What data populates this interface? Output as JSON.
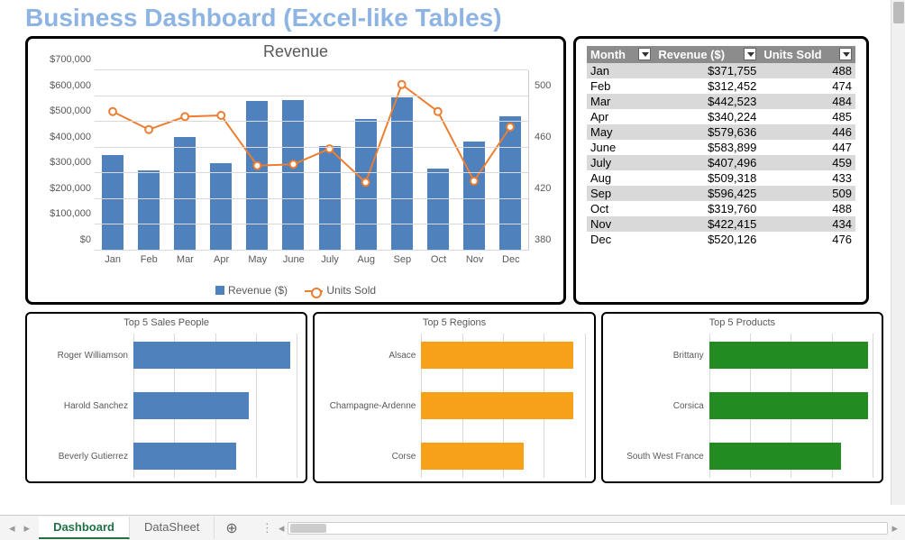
{
  "title": "Business Dashboard (Excel-like Tables)",
  "title_color": "#8db4e2",
  "title_fontsize": 28,
  "revenue_chart": {
    "type": "bar+line",
    "title": "Revenue",
    "title_fontsize": 18,
    "categories": [
      "Jan",
      "Feb",
      "Mar",
      "Apr",
      "May",
      "June",
      "July",
      "Aug",
      "Sep",
      "Oct",
      "Nov",
      "Dec"
    ],
    "bar_series": {
      "name": "Revenue ($)",
      "color": "#4f81bd",
      "values": [
        371755,
        312452,
        442523,
        340224,
        579636,
        583899,
        407496,
        509318,
        596425,
        319760,
        422415,
        520126
      ]
    },
    "line_series": {
      "name": "Units Sold",
      "color": "#ed7d31",
      "marker_fill": "#ffffff",
      "values": [
        488,
        474,
        484,
        485,
        446,
        447,
        459,
        433,
        509,
        488,
        434,
        476
      ]
    },
    "y_left": {
      "min": 0,
      "max": 700000,
      "step": 100000,
      "format_prefix": "$",
      "ticks": [
        "$0",
        "$100,000",
        "$200,000",
        "$300,000",
        "$400,000",
        "$500,000",
        "$600,000",
        "$700,000"
      ]
    },
    "y_right": {
      "min": 380,
      "max": 520,
      "step": 40,
      "ticks": [
        "380",
        "420",
        "460",
        "500"
      ]
    },
    "grid_color": "#d9d9d9",
    "background_color": "#ffffff"
  },
  "data_table": {
    "columns": [
      "Month",
      "Revenue ($)",
      "Units Sold"
    ],
    "header_bg": "#8c8c8c",
    "header_fg": "#ffffff",
    "row_alt_bg": "#d9d9d9",
    "rows": [
      [
        "Jan",
        "$371,755",
        "488"
      ],
      [
        "Feb",
        "$312,452",
        "474"
      ],
      [
        "Mar",
        "$442,523",
        "484"
      ],
      [
        "Apr",
        "$340,224",
        "485"
      ],
      [
        "May",
        "$579,636",
        "446"
      ],
      [
        "June",
        "$583,899",
        "447"
      ],
      [
        "July",
        "$407,496",
        "459"
      ],
      [
        "Aug",
        "$509,318",
        "433"
      ],
      [
        "Sep",
        "$596,425",
        "509"
      ],
      [
        "Oct",
        "$319,760",
        "488"
      ],
      [
        "Nov",
        "$422,415",
        "434"
      ],
      [
        "Dec",
        "$520,126",
        "476"
      ]
    ]
  },
  "mini_charts": [
    {
      "title": "Top 5 Sales People",
      "color": "#4f81bd",
      "max": 100,
      "items": [
        {
          "label": "Roger Williamson",
          "value": 95
        },
        {
          "label": "Harold Sanchez",
          "value": 70
        },
        {
          "label": "Beverly Gutierrez",
          "value": 62
        }
      ]
    },
    {
      "title": "Top 5 Regions",
      "color": "#f7a11b",
      "max": 100,
      "items": [
        {
          "label": "Alsace",
          "value": 92
        },
        {
          "label": "Champagne-Ardenne",
          "value": 92
        },
        {
          "label": "Corse",
          "value": 62
        }
      ]
    },
    {
      "title": "Top 5 Products",
      "color": "#228b22",
      "max": 100,
      "items": [
        {
          "label": "Brittany",
          "value": 96
        },
        {
          "label": "Corsica",
          "value": 96
        },
        {
          "label": "South West France",
          "value": 80
        }
      ]
    }
  ],
  "tabs": {
    "items": [
      "Dashboard",
      "DataSheet"
    ],
    "active": 0,
    "active_color": "#1f7246"
  }
}
